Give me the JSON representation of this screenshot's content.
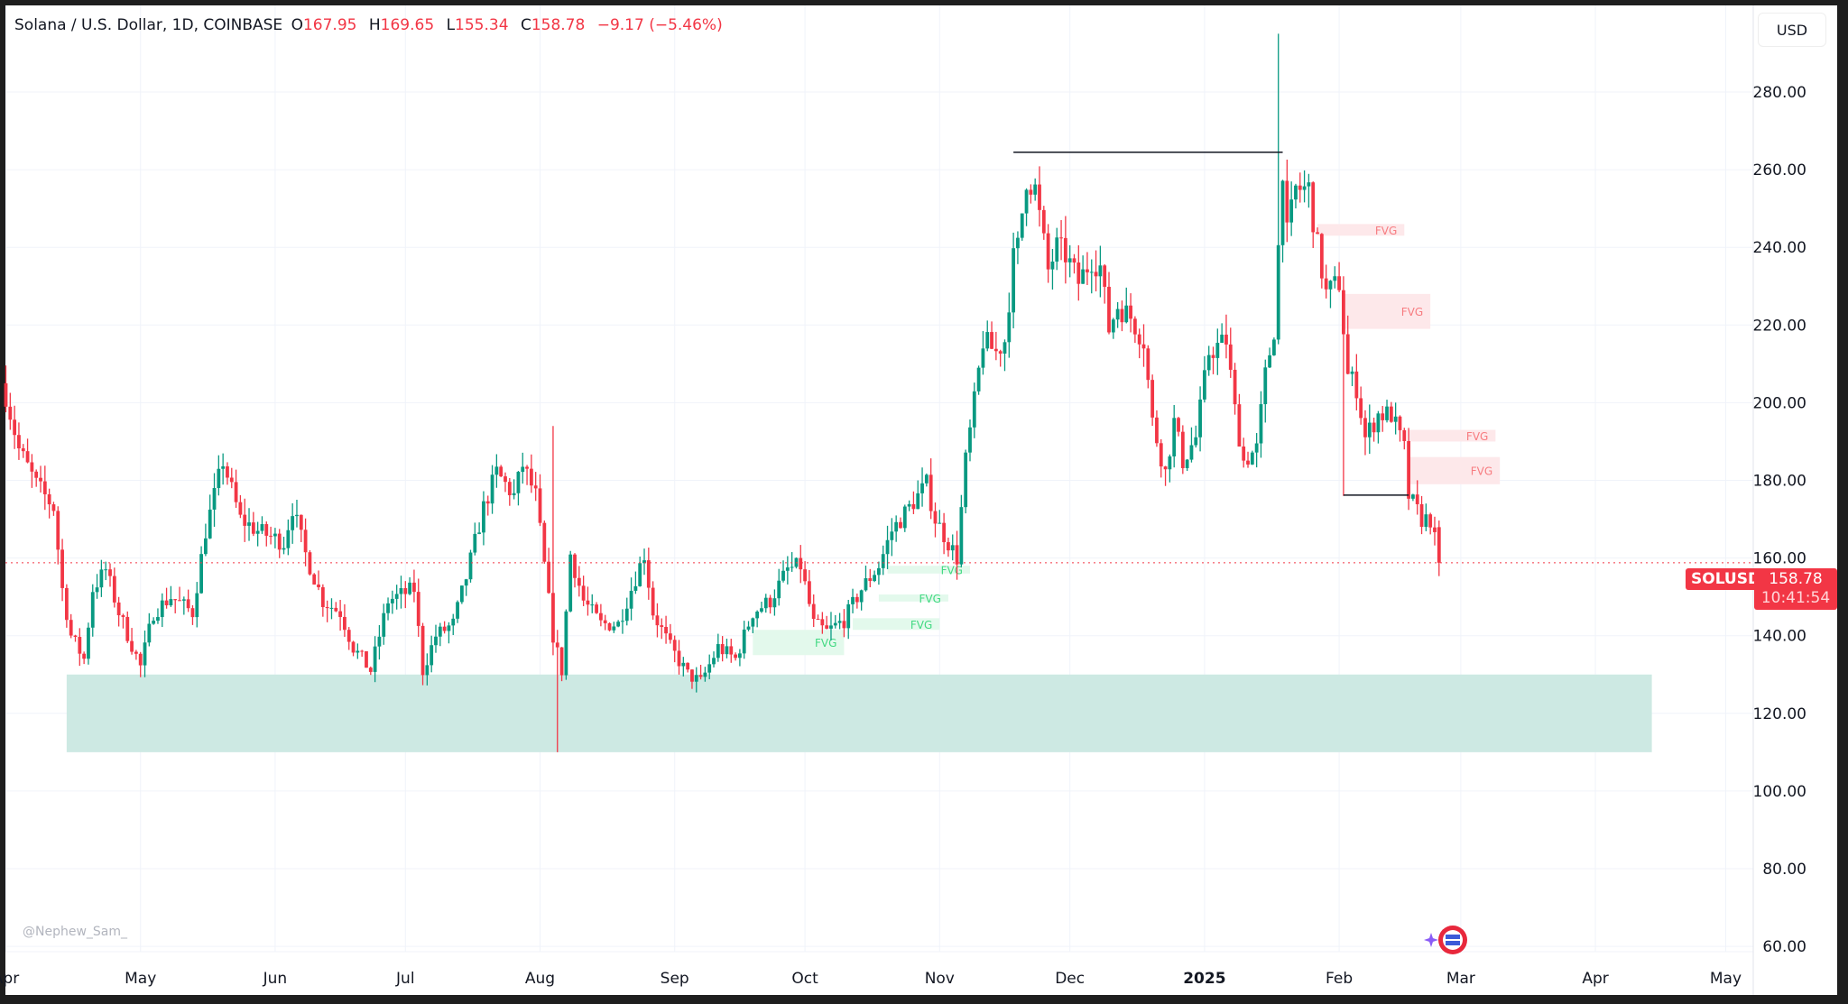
{
  "header": {
    "title": "Solana / U.S. Dollar, 1D, COINBASE",
    "open_label": "O",
    "open": "167.95",
    "high_label": "H",
    "high": "169.65",
    "low_label": "L",
    "low": "155.34",
    "close_label": "C",
    "close": "158.78",
    "change": "−9.17 (−5.46%)"
  },
  "currency_button": "USD",
  "symbol_tag": "SOLUSD",
  "last_price": "158.78",
  "countdown": "10:41:54",
  "watermark": "@Nephew_Sam_",
  "colors": {
    "up": "#089981",
    "down": "#f23645",
    "zone": "#cde9e3",
    "fvg_bear": "#fde8ea",
    "fvg_bull": "#e3f9ec"
  },
  "chart_data": {
    "type": "candlestick",
    "title": "Solana / U.S. Dollar, 1D, COINBASE",
    "time_origin": "2024-03-31",
    "time_unit": "day",
    "xlim_days": [
      -2,
      420
    ],
    "ylim": [
      56,
      296
    ],
    "y_ticks": [
      "60.00",
      "80.00",
      "100.00",
      "120.00",
      "140.00",
      "160.00",
      "180.00",
      "200.00",
      "220.00",
      "240.00",
      "260.00",
      "280.00"
    ],
    "x_ticks": [
      {
        "label": "Apr",
        "day": 0
      },
      {
        "label": "May",
        "day": 31
      },
      {
        "label": "Jun",
        "day": 62
      },
      {
        "label": "Jul",
        "day": 92
      },
      {
        "label": "Aug",
        "day": 123
      },
      {
        "label": "Sep",
        "day": 154
      },
      {
        "label": "Oct",
        "day": 184
      },
      {
        "label": "Nov",
        "day": 215
      },
      {
        "label": "Dec",
        "day": 245
      },
      {
        "label": "2025",
        "day": 276
      },
      {
        "label": "Feb",
        "day": 307
      },
      {
        "label": "Mar",
        "day": 335
      },
      {
        "label": "Apr",
        "day": 366
      },
      {
        "label": "May",
        "day": 396
      }
    ],
    "close_anchors": [
      [
        0,
        202
      ],
      [
        3,
        188
      ],
      [
        7,
        179
      ],
      [
        11,
        173
      ],
      [
        13,
        152
      ],
      [
        15,
        140
      ],
      [
        18,
        134
      ],
      [
        20,
        152
      ],
      [
        23,
        157
      ],
      [
        26,
        146
      ],
      [
        31,
        132
      ],
      [
        34,
        146
      ],
      [
        38,
        150
      ],
      [
        43,
        146
      ],
      [
        46,
        167
      ],
      [
        50,
        185
      ],
      [
        54,
        170
      ],
      [
        58,
        167
      ],
      [
        64,
        164
      ],
      [
        66,
        173
      ],
      [
        69,
        161
      ],
      [
        73,
        149
      ],
      [
        77,
        146
      ],
      [
        80,
        137
      ],
      [
        84,
        131
      ],
      [
        88,
        149
      ],
      [
        94,
        152
      ],
      [
        96,
        131
      ],
      [
        99,
        140
      ],
      [
        103,
        143
      ],
      [
        106,
        155
      ],
      [
        110,
        173
      ],
      [
        113,
        182
      ],
      [
        117,
        176
      ],
      [
        119,
        184
      ],
      [
        122,
        176
      ],
      [
        124,
        158
      ],
      [
        126,
        140
      ],
      [
        128,
        131
      ],
      [
        130,
        161
      ],
      [
        133,
        149
      ],
      [
        137,
        143
      ],
      [
        141,
        143
      ],
      [
        147,
        161
      ],
      [
        149,
        146
      ],
      [
        153,
        137
      ],
      [
        157,
        130
      ],
      [
        160,
        128
      ],
      [
        164,
        137
      ],
      [
        168,
        134
      ],
      [
        172,
        146
      ],
      [
        176,
        149
      ],
      [
        180,
        157
      ],
      [
        183,
        158
      ],
      [
        186,
        143
      ],
      [
        189,
        141
      ],
      [
        193,
        144
      ],
      [
        197,
        152
      ],
      [
        201,
        158
      ],
      [
        204,
        167
      ],
      [
        208,
        173
      ],
      [
        212,
        179
      ],
      [
        214,
        170
      ],
      [
        217,
        164
      ],
      [
        219,
        160
      ],
      [
        221,
        185
      ],
      [
        223,
        200
      ],
      [
        225,
        216
      ],
      [
        228,
        213
      ],
      [
        230,
        216
      ],
      [
        232,
        237
      ],
      [
        233,
        240
      ],
      [
        235,
        258
      ],
      [
        237,
        255
      ],
      [
        240,
        234
      ],
      [
        242,
        240
      ],
      [
        244,
        238
      ],
      [
        247,
        231
      ],
      [
        250,
        237
      ],
      [
        252,
        235
      ],
      [
        254,
        219
      ],
      [
        256,
        225
      ],
      [
        259,
        222
      ],
      [
        262,
        216
      ],
      [
        264,
        195
      ],
      [
        267,
        182
      ],
      [
        269,
        195
      ],
      [
        271,
        185
      ],
      [
        274,
        191
      ],
      [
        277,
        213
      ],
      [
        281,
        216
      ],
      [
        283,
        198
      ],
      [
        285,
        185
      ],
      [
        288,
        188
      ],
      [
        290,
        207
      ],
      [
        292,
        219
      ],
      [
        294,
        261
      ],
      [
        295,
        243
      ],
      [
        297,
        255
      ],
      [
        300,
        255
      ],
      [
        302,
        240
      ],
      [
        304,
        228
      ],
      [
        307,
        231
      ],
      [
        309,
        207
      ],
      [
        311,
        204
      ],
      [
        313,
        191
      ],
      [
        316,
        197
      ],
      [
        319,
        197
      ],
      [
        322,
        188
      ],
      [
        323,
        176
      ],
      [
        326,
        170
      ],
      [
        328,
        170
      ],
      [
        330,
        159
      ]
    ],
    "notable_wicks": [
      {
        "day": 127,
        "low": 110
      },
      {
        "day": 293,
        "high": 295
      },
      {
        "day": 308,
        "low": 176
      },
      {
        "day": 126,
        "high": 194
      }
    ],
    "last_close": 158.78,
    "overlays": {
      "demand_zone": {
        "from_day": 14,
        "to_day": 379,
        "low": 110,
        "high": 130
      },
      "levels": [
        {
          "from_day": 232,
          "to_day": 294,
          "price": 264.5
        },
        {
          "from_day": 308,
          "to_day": 323,
          "price": 176.2
        }
      ],
      "fvg_bearish": [
        {
          "label": "FVG",
          "from_day": 302,
          "to_day": 322,
          "low": 243,
          "high": 246
        },
        {
          "label": "FVG",
          "from_day": 308,
          "to_day": 328,
          "low": 219,
          "high": 228
        },
        {
          "label": "FVG",
          "from_day": 323,
          "to_day": 343,
          "low": 190,
          "high": 193
        },
        {
          "label": "FVG",
          "from_day": 323,
          "to_day": 344,
          "low": 179,
          "high": 186
        }
      ],
      "fvg_bullish": [
        {
          "label": "FVG",
          "from_day": 203,
          "to_day": 222,
          "low": 156,
          "high": 158
        },
        {
          "label": "FVG",
          "from_day": 201,
          "to_day": 217,
          "low": 148.8,
          "high": 150.6
        },
        {
          "label": "FVG",
          "from_day": 195,
          "to_day": 215,
          "low": 141.5,
          "high": 144.5
        },
        {
          "label": "FVG",
          "from_day": 172,
          "to_day": 193,
          "low": 135,
          "high": 141.5
        }
      ]
    }
  }
}
